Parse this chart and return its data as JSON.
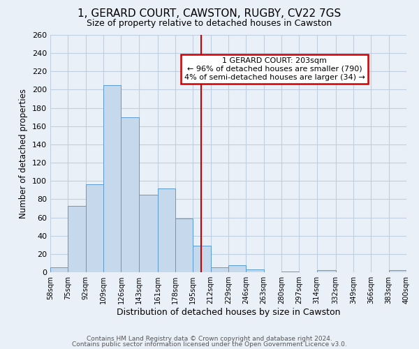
{
  "title": "1, GERARD COURT, CAWSTON, RUGBY, CV22 7GS",
  "subtitle": "Size of property relative to detached houses in Cawston",
  "xlabel": "Distribution of detached houses by size in Cawston",
  "ylabel": "Number of detached properties",
  "bar_edges": [
    58,
    75,
    92,
    109,
    126,
    143,
    161,
    178,
    195,
    212,
    229,
    246,
    263,
    280,
    297,
    314,
    332,
    349,
    366,
    383,
    400
  ],
  "bar_heights": [
    5,
    73,
    96,
    205,
    170,
    85,
    92,
    59,
    29,
    5,
    8,
    3,
    0,
    1,
    0,
    2,
    0,
    0,
    0,
    2
  ],
  "bar_color": "#c6d9ec",
  "bar_edge_color": "#5b9bd5",
  "vline_x": 203,
  "vline_color": "#cc0000",
  "annotation_text_line1": "1 GERARD COURT: 203sqm",
  "annotation_text_line2": "← 96% of detached houses are smaller (790)",
  "annotation_text_line3": "4% of semi-detached houses are larger (34) →",
  "annotation_box_color": "#cc0000",
  "ylim": [
    0,
    260
  ],
  "yticks": [
    0,
    20,
    40,
    60,
    80,
    100,
    120,
    140,
    160,
    180,
    200,
    220,
    240,
    260
  ],
  "tick_labels": [
    "58sqm",
    "75sqm",
    "92sqm",
    "109sqm",
    "126sqm",
    "143sqm",
    "161sqm",
    "178sqm",
    "195sqm",
    "212sqm",
    "229sqm",
    "246sqm",
    "263sqm",
    "280sqm",
    "297sqm",
    "314sqm",
    "332sqm",
    "349sqm",
    "366sqm",
    "383sqm",
    "400sqm"
  ],
  "grid_color": "#c0cfe0",
  "bg_color": "#eaf0f8",
  "footnote1": "Contains HM Land Registry data © Crown copyright and database right 2024.",
  "footnote2": "Contains public sector information licensed under the Open Government Licence v3.0."
}
